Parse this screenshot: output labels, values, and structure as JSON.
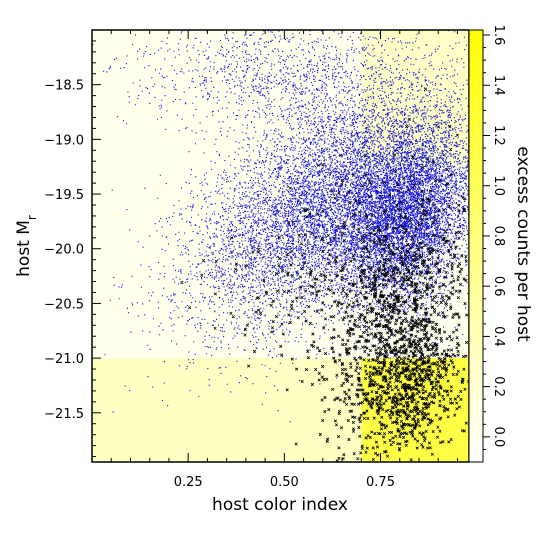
{
  "chart_data": {
    "type": "scatter",
    "xlabel": "host color index",
    "ylabel": "host M",
    "ylabel_subscript": "r",
    "y2label": "excess counts per host",
    "xlim": [
      0.0,
      0.98
    ],
    "ylim": [
      -21.95,
      -18.0
    ],
    "y2lim": [
      -0.1,
      1.62
    ],
    "y_inverted": true,
    "x_ticks": [
      "0.25",
      "0.50",
      "0.75"
    ],
    "x_tick_values": [
      0.25,
      0.5,
      0.75
    ],
    "y_ticks": [
      "-18.5",
      "-19.0",
      "-19.5",
      "-20.0",
      "-20.5",
      "-21.0",
      "-21.5"
    ],
    "y_tick_values": [
      -18.5,
      -19.0,
      -19.5,
      -20.0,
      -20.5,
      -21.0,
      -21.5
    ],
    "y2_ticks": [
      "1.6",
      "1.4",
      "1.2",
      "1.0",
      "0.8",
      "0.6",
      "0.4",
      "0.2",
      "0.0"
    ],
    "y2_tick_values": [
      1.6,
      1.4,
      1.2,
      1.0,
      0.8,
      0.6,
      0.4,
      0.2,
      0.0
    ],
    "regions": [
      {
        "x": [
          0.0,
          0.7
        ],
        "y": [
          -21.95,
          -18.0
        ],
        "excess": 0.03
      },
      {
        "x": [
          0.7,
          0.98
        ],
        "y": [
          -19.25,
          -18.0
        ],
        "excess": 0.28
      },
      {
        "x": [
          0.7,
          0.98
        ],
        "y": [
          -21.0,
          -19.25
        ],
        "excess": 0.02
      },
      {
        "x": [
          0.0,
          0.7
        ],
        "y": [
          -21.95,
          -21.0
        ],
        "excess": 0.3
      },
      {
        "x": [
          0.7,
          0.98
        ],
        "y": [
          -21.95,
          -21.0
        ],
        "excess": 1.15
      }
    ],
    "series": [
      {
        "marker": "dot",
        "color": "#1010e0",
        "components": [
          {
            "n": 7500,
            "center": [
              0.6,
              -19.6
            ],
            "sd": [
              0.17,
              0.55
            ],
            "corr": 0.5
          },
          {
            "n": 6500,
            "center": [
              0.82,
              -19.7
            ],
            "sd": [
              0.09,
              0.45
            ],
            "corr": 0.3
          },
          {
            "n": 1200,
            "center": [
              0.5,
              -18.4
            ],
            "sd": [
              0.2,
              0.25
            ],
            "corr": 0.0
          }
        ]
      },
      {
        "marker": "cross",
        "color": "#000000",
        "components": [
          {
            "n": 1100,
            "center": [
              0.8,
              -20.65
            ],
            "sd": [
              0.1,
              0.55
            ],
            "corr": 0.35
          },
          {
            "n": 600,
            "center": [
              0.82,
              -21.3
            ],
            "sd": [
              0.07,
              0.3
            ],
            "corr": 0.2
          },
          {
            "n": 250,
            "center": [
              0.62,
              -20.2
            ],
            "sd": [
              0.14,
              0.5
            ],
            "corr": 0.4
          }
        ]
      }
    ],
    "colors": {
      "colorbar_low": "#ffffff",
      "colorbar_high": "#ffff00",
      "frame": "#000000"
    }
  }
}
